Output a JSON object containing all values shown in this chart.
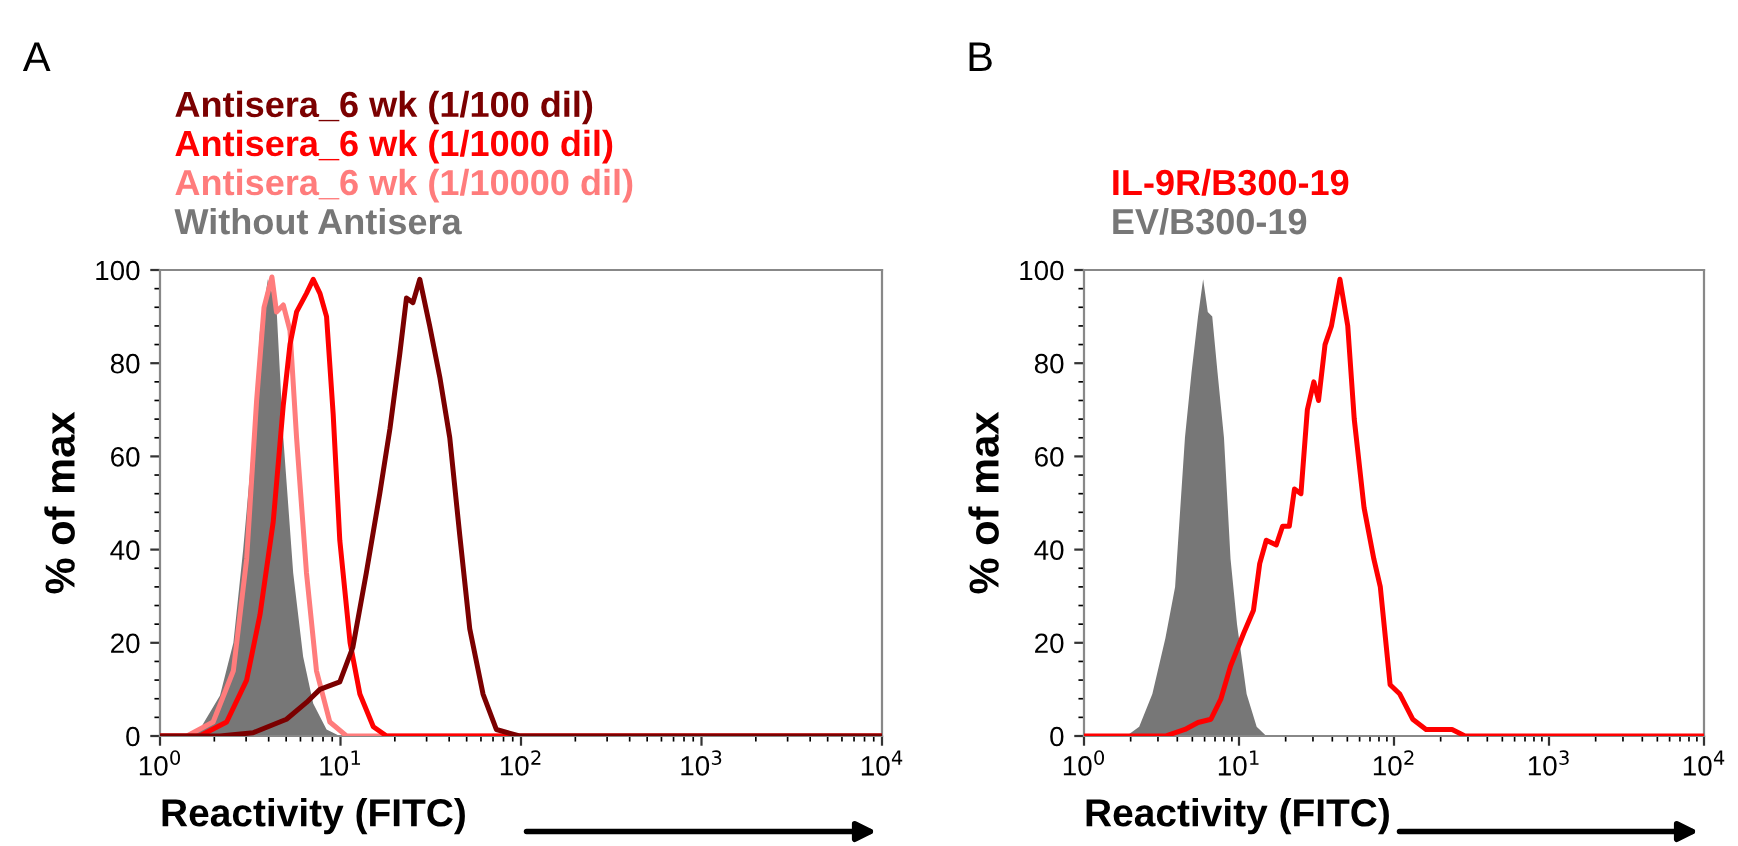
{
  "chart_data": [
    {
      "type": "line",
      "title": "A",
      "xlabel": "Reactivity (FITC)",
      "ylabel": "% of max",
      "log": "x",
      "xlim": [
        1,
        10000
      ],
      "xticks": [
        {
          "value": 1,
          "label": "10$^{0}$"
        },
        {
          "value": 10,
          "label": "10$^{1}$"
        },
        {
          "value": 100,
          "label": "10$^{2}$"
        },
        {
          "value": 1000,
          "label": "10$^{3}$"
        },
        {
          "value": 10000,
          "label": "10$^{4}$"
        }
      ],
      "ylim": [
        0,
        100
      ],
      "yticks": [
        0,
        20,
        40,
        60,
        80,
        100
      ],
      "grid": false,
      "legend": "top",
      "marker": "none",
      "line_style": "solid",
      "series": [
        {
          "name": "Antisera_6 wk (1/100 dil)",
          "color": "#7b0000",
          "x": [
            1,
            2.15,
            3.28,
            5.02,
            6.48,
            7.69,
            9.91,
            11.7,
            13.9,
            16.5,
            18.8,
            21.3,
            23.2,
            25.2,
            27.5,
            31.2,
            35.5,
            40.3,
            45.8,
            52.0,
            61.6,
            73.0,
            98,
            10000
          ],
          "values": [
            0,
            0,
            0.7,
            3.6,
            7.2,
            10,
            11.6,
            19,
            35,
            52,
            66,
            82,
            94,
            93,
            98,
            88,
            77,
            64,
            43,
            23,
            9,
            1.4,
            0,
            0
          ]
        },
        {
          "name": "Antisera_6 wk (1/1000 dil)",
          "color": "#ff0000",
          "x": [
            1,
            1.66,
            2.34,
            3.02,
            3.58,
            4.24,
            4.82,
            5.25,
            5.71,
            6.48,
            7.06,
            7.69,
            8.37,
            9.11,
            9.91,
            11.3,
            12.8,
            15.2,
            18.0,
            10000
          ],
          "values": [
            0,
            0,
            3,
            12,
            26,
            46,
            71,
            84,
            91,
            95,
            98,
            95,
            90,
            69,
            42,
            20,
            9,
            2,
            0,
            0
          ]
        },
        {
          "name": "Antisera_6 wk (1/10000 dil)",
          "color": "#ff7c7c",
          "x": [
            1,
            1.41,
            1.97,
            2.55,
            3.02,
            3.43,
            3.77,
            4.17,
            4.42,
            4.82,
            5.25,
            5.71,
            6.48,
            7.36,
            8.73,
            10.8,
            10000
          ],
          "values": [
            0,
            0,
            3,
            14,
            38,
            72,
            92,
            98.5,
            91,
            92.5,
            87,
            64,
            35,
            14,
            3,
            0,
            0
          ]
        },
        {
          "name": "Without Antisera",
          "color": "#777777",
          "type": "area",
          "x": [
            1.29,
            1.66,
            2.15,
            2.55,
            2.89,
            3.28,
            3.58,
            3.96,
            4.42,
            4.82,
            5.47,
            6.21,
            7.06,
            8.37,
            9.9
          ],
          "values": [
            0,
            1.4,
            8.7,
            20,
            40,
            64,
            87,
            98,
            92,
            64,
            35,
            17,
            7,
            1.4,
            0
          ]
        }
      ]
    },
    {
      "type": "line",
      "title": "B",
      "xlabel": "Reactivity (FITC)",
      "ylabel": "% of max",
      "log": "x",
      "xlim": [
        1,
        10000
      ],
      "xticks": [
        {
          "value": 1,
          "label": "10$^{0}$"
        },
        {
          "value": 10,
          "label": "10$^{1}$"
        },
        {
          "value": 100,
          "label": "10$^{2}$"
        },
        {
          "value": 1000,
          "label": "10$^{3}$"
        },
        {
          "value": 10000,
          "label": "10$^{4}$"
        }
      ],
      "ylim": [
        0,
        100
      ],
      "yticks": [
        0,
        20,
        40,
        60,
        80,
        100
      ],
      "grid": false,
      "legend": "top",
      "marker": "none",
      "line_style": "solid",
      "series": [
        {
          "name": "IL-9R/B300-19",
          "color": "#ff0000",
          "x": [
            1,
            3.35,
            4.48,
            5.44,
            6.59,
            7.63,
            8.82,
            10.7,
            12.4,
            13.6,
            15.0,
            17.4,
            19.1,
            21.1,
            22.8,
            25.1,
            27.6,
            30.4,
            32.6,
            35.9,
            39.5,
            44.8,
            50.3,
            55.4,
            64.1,
            74.1,
            81.6,
            94.4,
            109,
            132,
            161,
            237,
            287,
            10000
          ],
          "values": [
            0,
            0,
            1.4,
            2.9,
            3.6,
            7.9,
            15,
            22,
            27,
            37,
            42,
            41,
            45,
            45,
            53,
            52,
            70,
            76,
            72,
            84,
            88,
            98,
            88,
            68,
            49,
            38,
            32,
            11,
            9,
            3.6,
            1.4,
            1.4,
            0,
            0
          ]
        },
        {
          "name": "EV/B300-19",
          "color": "#777777",
          "type": "area",
          "x": [
            1.88,
            2.27,
            2.76,
            3.35,
            3.87,
            4.48,
            4.94,
            5.44,
            5.87,
            6.29,
            6.72,
            7.27,
            8.0,
            8.82,
            9.71,
            11.2,
            13.0,
            15.0
          ],
          "values": [
            0,
            2,
            9,
            21,
            32,
            64,
            78,
            90,
            98,
            91,
            90,
            78,
            64,
            38,
            24,
            9,
            2,
            0
          ]
        }
      ]
    }
  ]
}
